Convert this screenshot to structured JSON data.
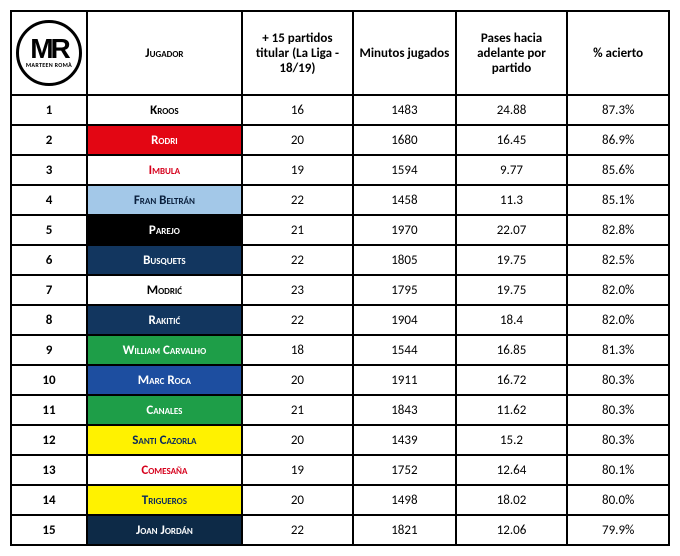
{
  "logo": {
    "initials": "MR",
    "name": "MARTEEN ROMÀ"
  },
  "headers": {
    "player": "Jugador",
    "games": "+ 15 partidos titular (La Liga - 18/19)",
    "minutes": "Minutos jugados",
    "passes": "Pases hacia adelante por partido",
    "accuracy": "% acierto"
  },
  "rows": [
    {
      "rank": 1,
      "player": "Kroos",
      "bg": "#ffffff",
      "fg": "#000000",
      "games": 16,
      "mins": 1483,
      "passes": "24.88",
      "acc": "87.3%"
    },
    {
      "rank": 2,
      "player": "Rodri",
      "bg": "#e30613",
      "fg": "#ffffff",
      "games": 20,
      "mins": 1680,
      "passes": "16.45",
      "acc": "86.9%"
    },
    {
      "rank": 3,
      "player": "Imbula",
      "bg": "#ffffff",
      "fg": "#d6001c",
      "games": 19,
      "mins": 1594,
      "passes": "9.77",
      "acc": "85.6%"
    },
    {
      "rank": 4,
      "player": "Fran Beltrán",
      "bg": "#a3c8e8",
      "fg": "#0a1f3c",
      "games": 22,
      "mins": 1458,
      "passes": "11.3",
      "acc": "85.1%"
    },
    {
      "rank": 5,
      "player": "Parejo",
      "bg": "#000000",
      "fg": "#ffffff",
      "games": 21,
      "mins": 1970,
      "passes": "22.07",
      "acc": "82.8%"
    },
    {
      "rank": 6,
      "player": "Busquets",
      "bg": "#12365f",
      "fg": "#ffffff",
      "games": 22,
      "mins": 1805,
      "passes": "19.75",
      "acc": "82.5%"
    },
    {
      "rank": 7,
      "player": "Modrić",
      "bg": "#ffffff",
      "fg": "#000000",
      "games": 23,
      "mins": 1795,
      "passes": "19.75",
      "acc": "82.0%"
    },
    {
      "rank": 8,
      "player": "Rakitić",
      "bg": "#12365f",
      "fg": "#ffffff",
      "games": 22,
      "mins": 1904,
      "passes": "18.4",
      "acc": "82.0%"
    },
    {
      "rank": 9,
      "player": "William Carvalho",
      "bg": "#1e9e48",
      "fg": "#ffffff",
      "games": 18,
      "mins": 1544,
      "passes": "16.85",
      "acc": "81.3%"
    },
    {
      "rank": 10,
      "player": "Marc Roca",
      "bg": "#1d4ea0",
      "fg": "#ffffff",
      "games": 20,
      "mins": 1911,
      "passes": "16.72",
      "acc": "80.3%"
    },
    {
      "rank": 11,
      "player": "Canales",
      "bg": "#1e9e48",
      "fg": "#ffffff",
      "games": 21,
      "mins": 1843,
      "passes": "11.62",
      "acc": "80.3%"
    },
    {
      "rank": 12,
      "player": "Santi Cazorla",
      "bg": "#fff200",
      "fg": "#0a2a5e",
      "games": 20,
      "mins": 1439,
      "passes": "15.2",
      "acc": "80.3%"
    },
    {
      "rank": 13,
      "player": "Comesaña",
      "bg": "#ffffff",
      "fg": "#d6001c",
      "games": 19,
      "mins": 1752,
      "passes": "12.64",
      "acc": "80.1%"
    },
    {
      "rank": 14,
      "player": "Trigueros",
      "bg": "#fff200",
      "fg": "#0a2a5e",
      "games": 20,
      "mins": 1498,
      "passes": "18.02",
      "acc": "80.0%"
    },
    {
      "rank": 15,
      "player": "Joan Jordán",
      "bg": "#0d2a47",
      "fg": "#ffffff",
      "games": 22,
      "mins": 1821,
      "passes": "12.06",
      "acc": "79.9%"
    }
  ]
}
